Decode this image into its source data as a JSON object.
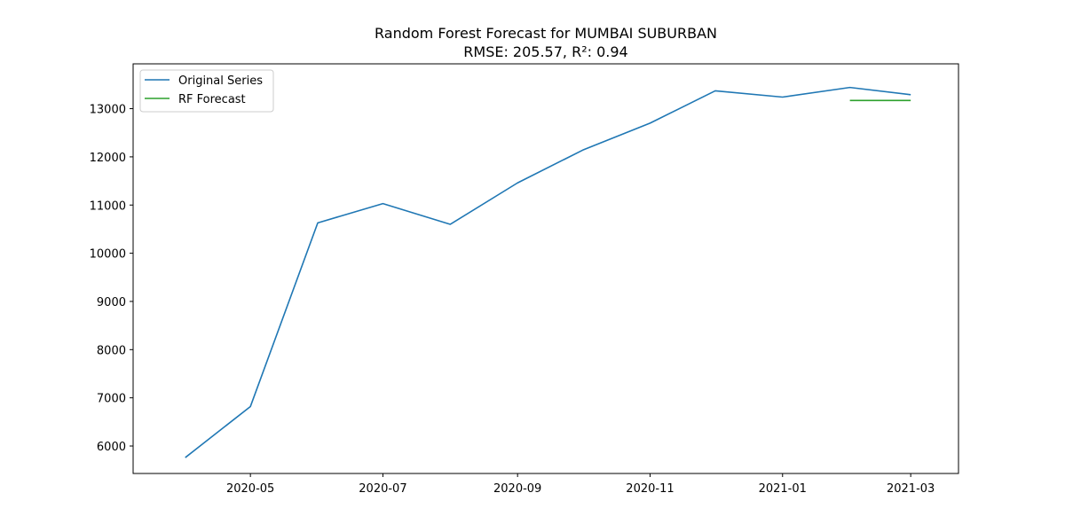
{
  "chart_data": {
    "type": "line",
    "title": "Random Forest Forecast for MUMBAI SUBURBAN",
    "subtitle": "RMSE: 205.57, R²: 0.94",
    "xlabel": "",
    "ylabel": "",
    "x_ticks": [
      "2020-05",
      "2020-07",
      "2020-09",
      "2020-11",
      "2021-01",
      "2021-03"
    ],
    "y_ticks": [
      6000,
      7000,
      8000,
      9000,
      10000,
      11000,
      12000,
      13000
    ],
    "ylim": [
      5430,
      13930
    ],
    "xlim": [
      "2020-03-08",
      "2021-03-23"
    ],
    "grid": false,
    "legend_position": "top-left",
    "series": [
      {
        "name": "Original Series",
        "color": "#1f77b4",
        "x": [
          "2020-04-01",
          "2020-05-01",
          "2020-06-01",
          "2020-07-01",
          "2020-08-01",
          "2020-09-01",
          "2020-10-01",
          "2020-11-01",
          "2020-12-01",
          "2021-01-01",
          "2021-02-01",
          "2021-03-01"
        ],
        "y": [
          5760,
          6820,
          10630,
          11030,
          10600,
          11460,
          12140,
          12700,
          13370,
          13240,
          13440,
          13290
        ]
      },
      {
        "name": "RF Forecast",
        "color": "#2ca02c",
        "x": [
          "2021-02-01",
          "2021-03-01"
        ],
        "y": [
          13170,
          13170
        ]
      }
    ]
  }
}
